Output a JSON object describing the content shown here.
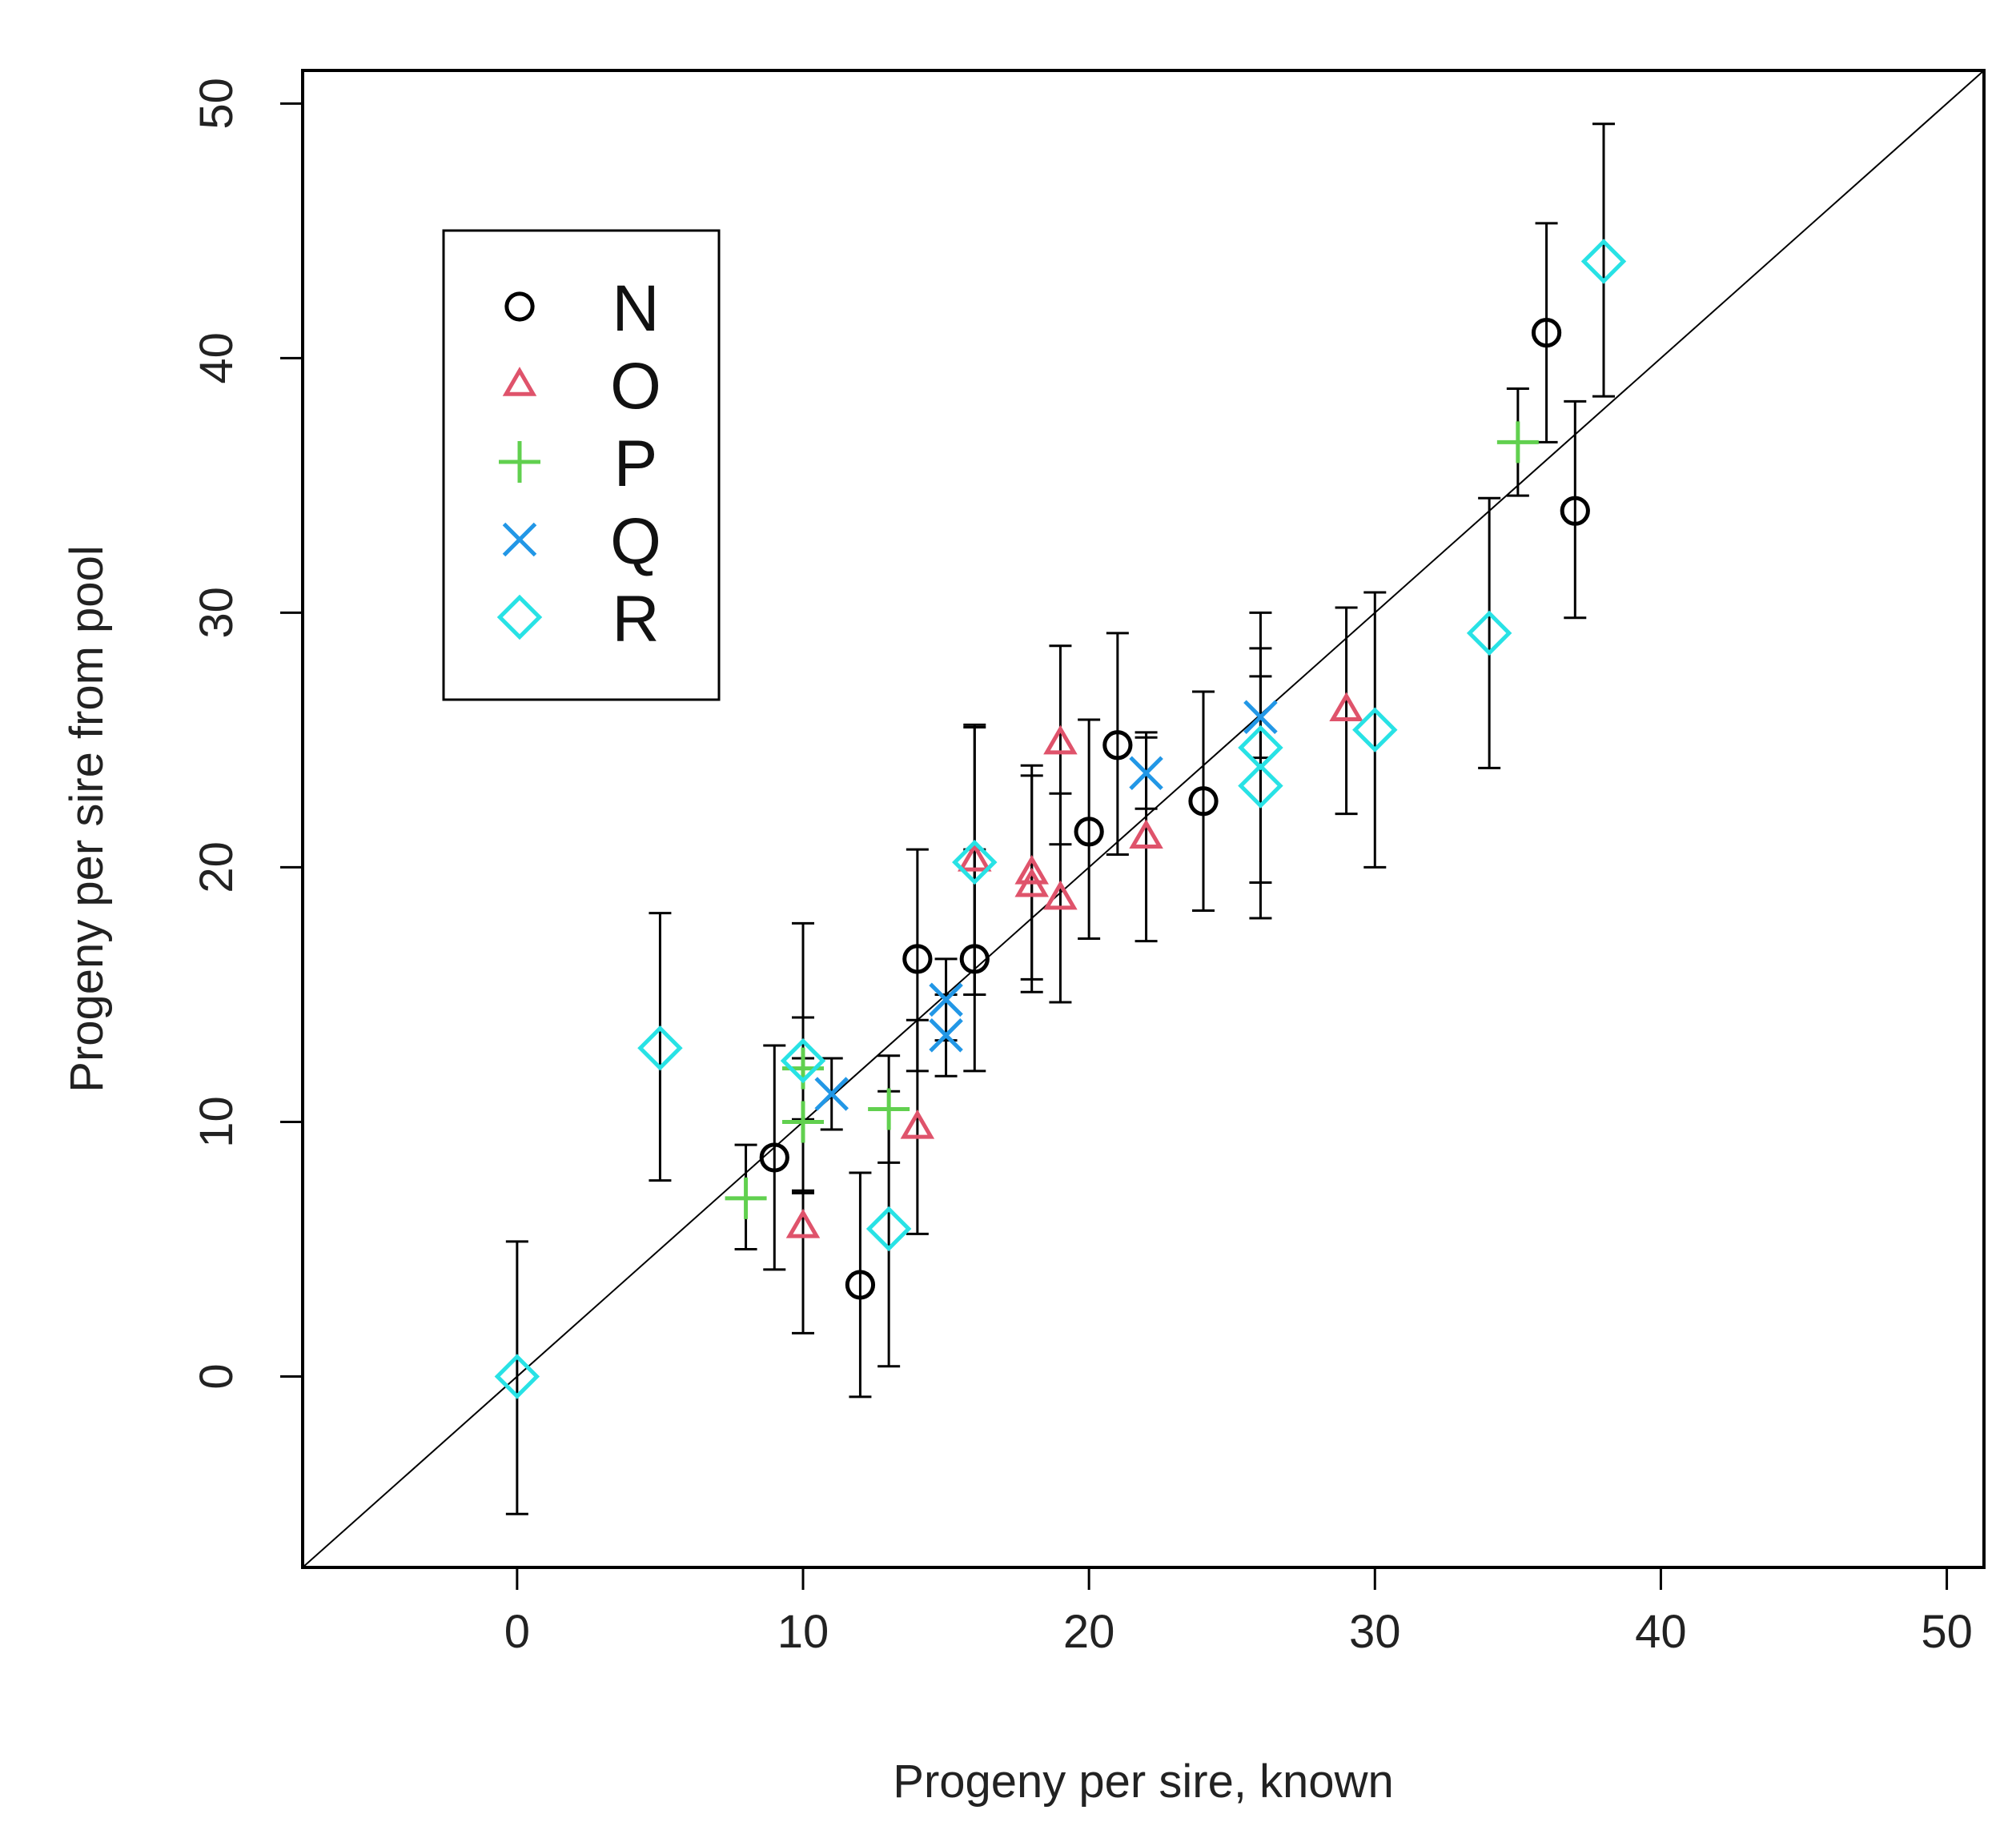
{
  "chart_data": {
    "type": "scatter",
    "title": "",
    "xlabel": "Progeny per sire, known",
    "ylabel": "Progeny per sire from pool",
    "xlim": [
      -7.5,
      51.3
    ],
    "ylim": [
      -7.5,
      51.3
    ],
    "xticks": [
      0,
      10,
      20,
      30,
      40,
      50
    ],
    "yticks": [
      0,
      10,
      20,
      30,
      40,
      50
    ],
    "reference_line": "y = x",
    "legend_position": "top-left",
    "series": [
      {
        "name": "N",
        "marker": "circle",
        "color": "#000000",
        "points": [
          {
            "x": 9,
            "y": 8.6,
            "lo": 4.2,
            "hi": 13.0
          },
          {
            "x": 12,
            "y": 3.6,
            "lo": -0.8,
            "hi": 8.0
          },
          {
            "x": 14,
            "y": 16.4,
            "lo": 12.0,
            "hi": 20.7
          },
          {
            "x": 16,
            "y": 16.4,
            "lo": 12.0,
            "hi": 20.7
          },
          {
            "x": 20,
            "y": 21.4,
            "lo": 17.2,
            "hi": 25.8
          },
          {
            "x": 21,
            "y": 24.8,
            "lo": 20.5,
            "hi": 29.2
          },
          {
            "x": 24,
            "y": 22.6,
            "lo": 18.3,
            "hi": 26.9
          },
          {
            "x": 36,
            "y": 41.0,
            "lo": 36.7,
            "hi": 45.3
          },
          {
            "x": 37,
            "y": 34.0,
            "lo": 29.8,
            "hi": 38.3
          }
        ]
      },
      {
        "name": "O",
        "marker": "triangle",
        "color": "#DF536B",
        "points": [
          {
            "x": 10,
            "y": 5.9,
            "lo": 1.7,
            "hi": 10.1
          },
          {
            "x": 14,
            "y": 9.8,
            "lo": 5.6,
            "hi": 14.0
          },
          {
            "x": 16,
            "y": 20.3,
            "lo": 15.0,
            "hi": 25.6
          },
          {
            "x": 18,
            "y": 19.8,
            "lo": 15.6,
            "hi": 24.0
          },
          {
            "x": 18,
            "y": 19.3,
            "lo": 15.1,
            "hi": 23.6
          },
          {
            "x": 19,
            "y": 18.8,
            "lo": 14.7,
            "hi": 22.9
          },
          {
            "x": 19,
            "y": 24.9,
            "lo": 20.9,
            "hi": 28.7
          },
          {
            "x": 22,
            "y": 21.2,
            "lo": 17.1,
            "hi": 25.3
          },
          {
            "x": 29,
            "y": 26.2,
            "lo": 22.1,
            "hi": 30.2
          }
        ]
      },
      {
        "name": "P",
        "marker": "plus",
        "color": "#61D04F",
        "points": [
          {
            "x": 8,
            "y": 7.0,
            "lo": 5.0,
            "hi": 9.1
          },
          {
            "x": 10,
            "y": 12.1,
            "lo": 7.3,
            "hi": 14.1
          },
          {
            "x": 10,
            "y": 10.0,
            "lo": 7.3,
            "hi": 12.5
          },
          {
            "x": 13,
            "y": 10.5,
            "lo": 8.4,
            "hi": 12.6
          },
          {
            "x": 35,
            "y": 36.7,
            "lo": 34.6,
            "hi": 38.8
          }
        ]
      },
      {
        "name": "Q",
        "marker": "cross",
        "color": "#2297E6",
        "points": [
          {
            "x": 11,
            "y": 11.1,
            "lo": 9.7,
            "hi": 12.5
          },
          {
            "x": 15,
            "y": 13.4,
            "lo": 11.8,
            "hi": 15.0
          },
          {
            "x": 15,
            "y": 14.8,
            "lo": 13.2,
            "hi": 16.4
          },
          {
            "x": 22,
            "y": 23.7,
            "lo": 22.3,
            "hi": 25.1
          },
          {
            "x": 26,
            "y": 25.9,
            "lo": 24.3,
            "hi": 27.5
          }
        ]
      },
      {
        "name": "R",
        "marker": "diamond",
        "color": "#28E2E5",
        "points": [
          {
            "x": 0,
            "y": 0.0,
            "lo": -5.4,
            "hi": 5.3
          },
          {
            "x": 5,
            "y": 12.9,
            "lo": 7.7,
            "hi": 18.2
          },
          {
            "x": 10,
            "y": 12.4,
            "lo": 7.2,
            "hi": 17.8
          },
          {
            "x": 13,
            "y": 5.8,
            "lo": 0.4,
            "hi": 11.2
          },
          {
            "x": 16,
            "y": 20.2,
            "lo": 15.0,
            "hi": 25.5
          },
          {
            "x": 26,
            "y": 24.7,
            "lo": 19.4,
            "hi": 30.0
          },
          {
            "x": 26,
            "y": 23.2,
            "lo": 18.0,
            "hi": 28.6
          },
          {
            "x": 30,
            "y": 25.4,
            "lo": 20.0,
            "hi": 30.8
          },
          {
            "x": 34,
            "y": 29.2,
            "lo": 23.9,
            "hi": 34.5
          },
          {
            "x": 38,
            "y": 43.8,
            "lo": 38.5,
            "hi": 49.2
          }
        ]
      }
    ]
  }
}
